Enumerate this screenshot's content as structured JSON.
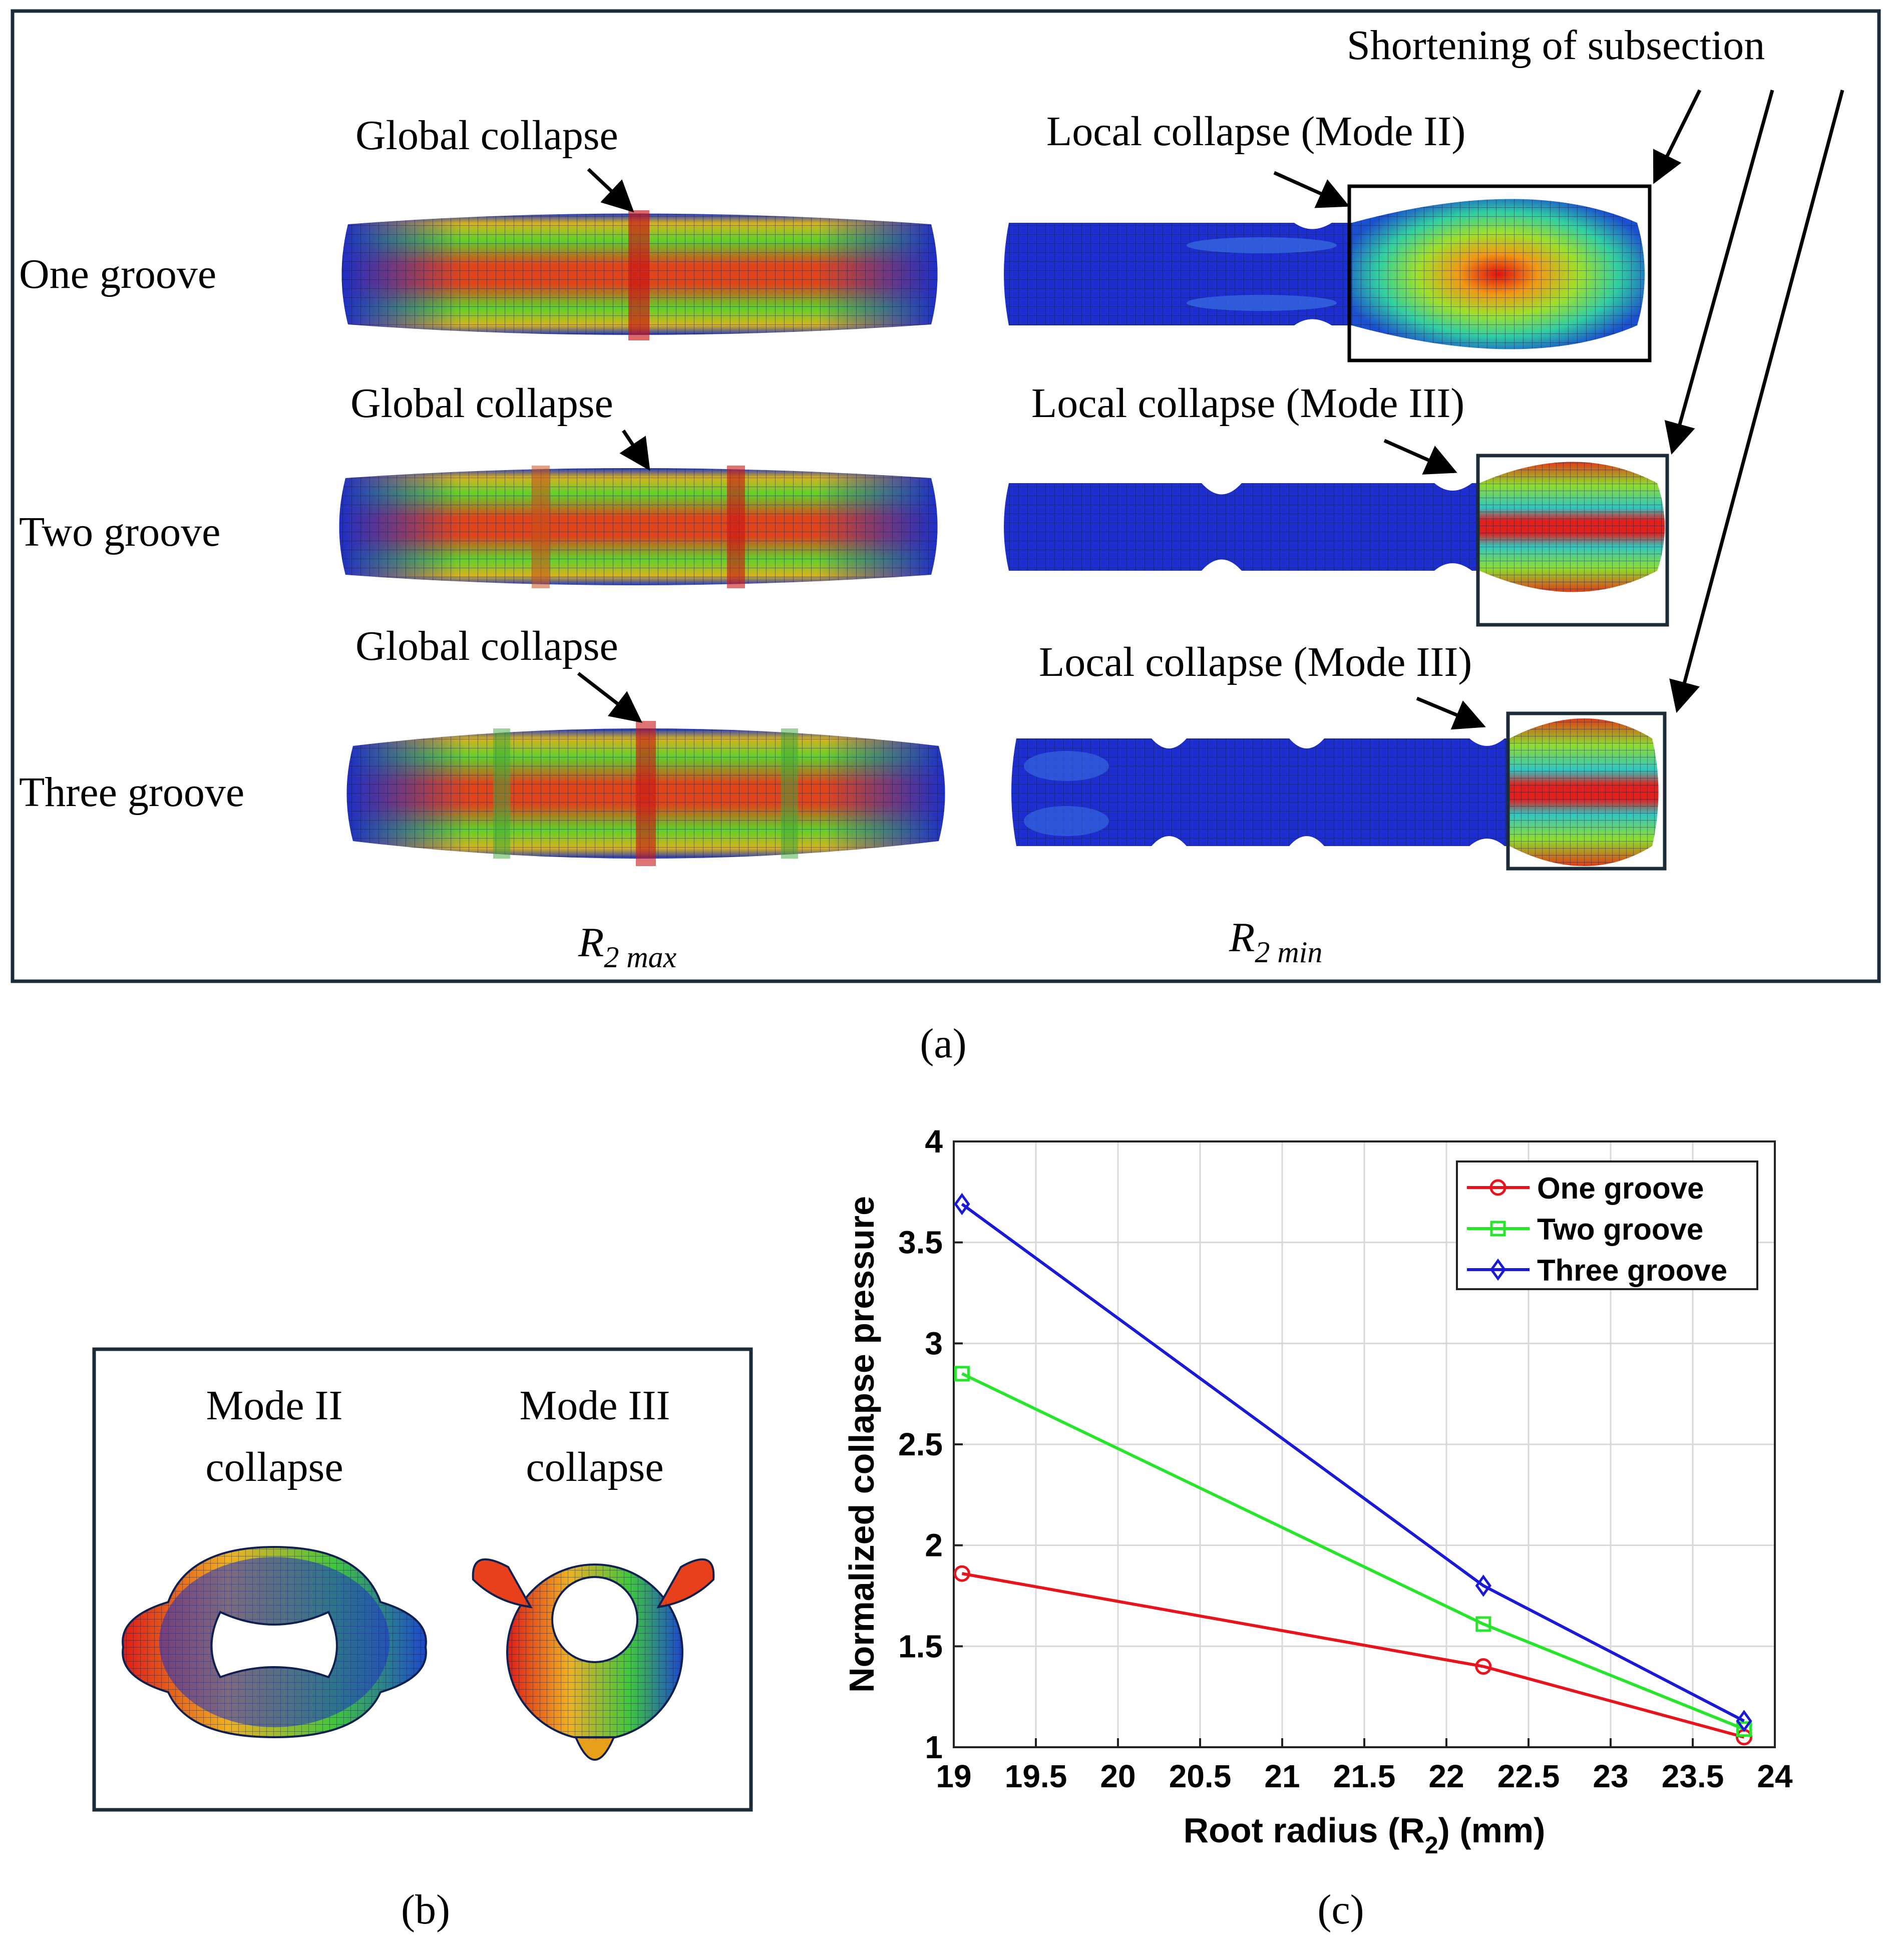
{
  "panel_a": {
    "row_labels": [
      "One groove",
      "Two groove",
      "Three groove"
    ],
    "global_labels": [
      "Global collapse",
      "Global collapse",
      "Global collapse"
    ],
    "local_labels": [
      "Local collapse (Mode II)",
      "Local collapse (Mode III)",
      "Local collapse (Mode III)"
    ],
    "shortening_label": "Shortening  of  subsection",
    "col_left_main": "R",
    "col_left_sub": "2 max",
    "col_right_main": "R",
    "col_right_sub": "2 min",
    "caption": "(a)"
  },
  "panel_b": {
    "mode2_line1": "Mode II",
    "mode2_line2": "collapse",
    "mode3_line1": "Mode III",
    "mode3_line2": "collapse",
    "caption": "(b)"
  },
  "panel_c": {
    "caption": "(c)"
  },
  "chart_data": {
    "type": "line",
    "xlabel_main": "Root radius (R",
    "xlabel_sub": "2",
    "xlabel_end": ") (mm)",
    "ylabel": "Normalized collapse pressure",
    "xlim": [
      19,
      24
    ],
    "ylim": [
      1,
      4
    ],
    "xticks": [
      19,
      19.5,
      20,
      20.5,
      21,
      21.5,
      22,
      22.5,
      23,
      23.5,
      24
    ],
    "yticks": [
      1,
      1.5,
      2,
      2.5,
      3,
      3.5,
      4
    ],
    "grid": true,
    "legend_position": "top-right",
    "series": [
      {
        "name": "One groove",
        "color": "#e8131c",
        "marker": "circle",
        "x": [
          19.05,
          22.225,
          23.8125
        ],
        "y": [
          1.86,
          1.4,
          1.05
        ]
      },
      {
        "name": "Two groove",
        "color": "#27e52b",
        "marker": "square",
        "x": [
          19.05,
          22.225,
          23.8125
        ],
        "y": [
          2.85,
          1.61,
          1.09
        ]
      },
      {
        "name": "Three groove",
        "color": "#1a1ad6",
        "marker": "diamond",
        "x": [
          19.05,
          22.225,
          23.8125
        ],
        "y": [
          3.69,
          1.8,
          1.13
        ]
      }
    ]
  }
}
